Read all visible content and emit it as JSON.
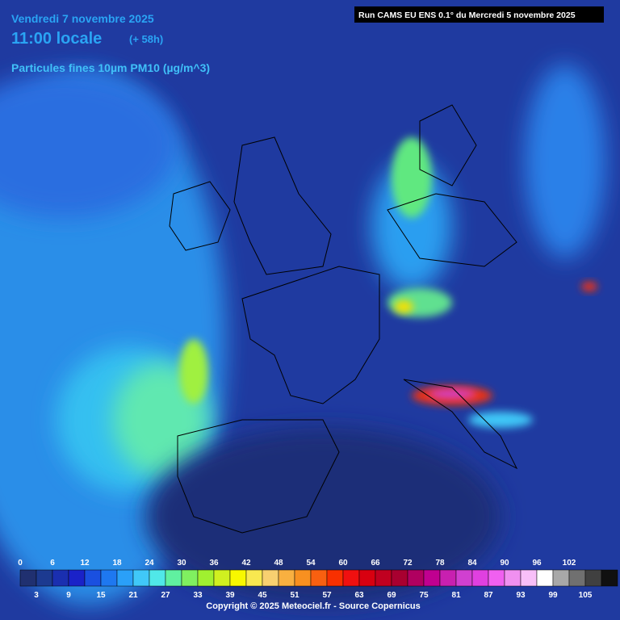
{
  "header": {
    "date": "Vendredi 7 novembre 2025",
    "time": "11:00 locale",
    "lead": "(+ 58h)",
    "run": "Run CAMS EU ENS 0.1° du Mercredi 5 novembre 2025",
    "product": "Particules fines 10µm PM10 (µg/m^3)"
  },
  "legend": {
    "upper_labels": [
      0,
      6,
      12,
      18,
      24,
      30,
      36,
      42,
      48,
      54,
      60,
      66,
      72,
      78,
      84,
      90,
      96,
      102
    ],
    "lower_labels": [
      3,
      9,
      15,
      21,
      27,
      33,
      39,
      45,
      51,
      57,
      63,
      69,
      75,
      81,
      87,
      93,
      99,
      105
    ],
    "colors": [
      "#203070",
      "#1c3a90",
      "#1a2fb0",
      "#1a22c8",
      "#1a50e0",
      "#1e78f0",
      "#2aa0f8",
      "#40c8f8",
      "#50e8e8",
      "#60f0a0",
      "#80f060",
      "#a0f030",
      "#d0f020",
      "#f8f800",
      "#f8e850",
      "#f8d070",
      "#f8b040",
      "#f89020",
      "#f86010",
      "#f83000",
      "#f01010",
      "#d80010",
      "#c00020",
      "#a80030",
      "#b00060",
      "#c00090",
      "#c820b0",
      "#d040d0",
      "#e040e0",
      "#f060f0",
      "#f090f0",
      "#f8c0f8",
      "#ffffff",
      "#a8a8a8",
      "#707070",
      "#404040",
      "#101010"
    ]
  },
  "footer": {
    "copyright": "Copyright © 2025 Meteociel.fr - Source Copernicus"
  }
}
